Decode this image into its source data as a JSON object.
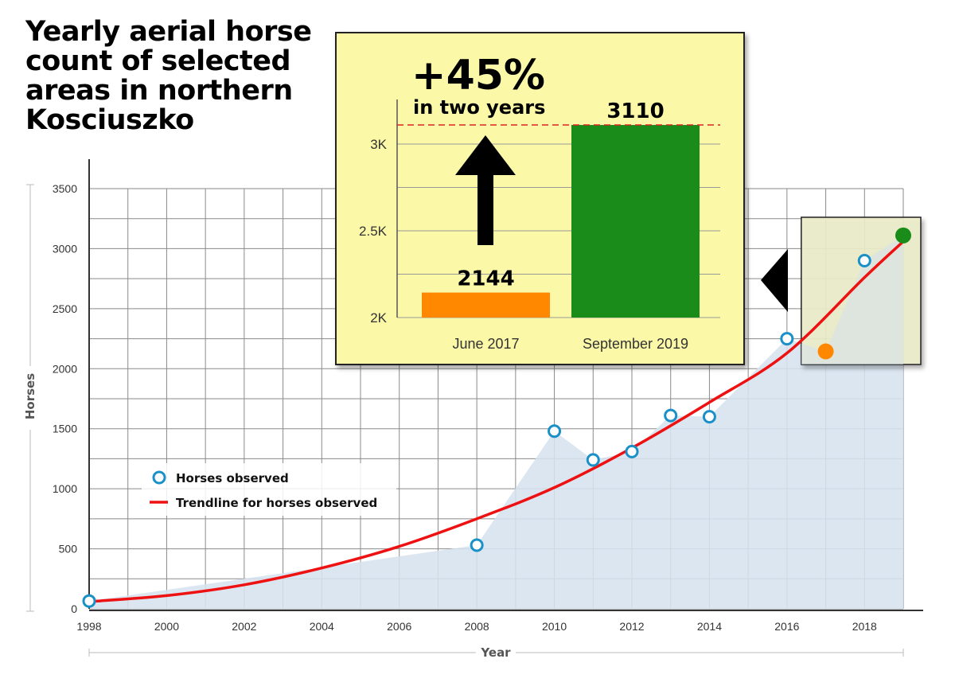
{
  "title_lines": [
    "Yearly aerial horse",
    "count of selected",
    "areas in northern",
    "Kosciuszko"
  ],
  "chart_data": [
    {
      "type": "scatter",
      "title": "Yearly aerial horse count of selected areas in northern Kosciuszko",
      "xlabel": "Year",
      "ylabel": "Horses",
      "xlim": [
        1998,
        2019
      ],
      "ylim": [
        0,
        3500
      ],
      "x_ticks": [
        1998,
        2000,
        2002,
        2004,
        2006,
        2008,
        2010,
        2012,
        2014,
        2016,
        2018
      ],
      "y_ticks": [
        0,
        500,
        1000,
        1500,
        2000,
        2500,
        3000,
        3500
      ],
      "grid": true,
      "legend_position": "center-left",
      "series": [
        {
          "name": "Horses observed",
          "type": "scatter",
          "x": [
            1998,
            2008,
            2010,
            2011,
            2012,
            2013,
            2014,
            2016,
            2018
          ],
          "y": [
            65,
            530,
            1480,
            1240,
            1310,
            1610,
            1600,
            2250,
            2900
          ]
        },
        {
          "name": "Trendline for horses observed",
          "type": "line",
          "x": [
            1998,
            2000,
            2002,
            2004,
            2006,
            2008,
            2010,
            2012,
            2014,
            2016,
            2018,
            2019
          ],
          "y": [
            60,
            110,
            200,
            340,
            520,
            750,
            1010,
            1340,
            1720,
            2130,
            2760,
            3060
          ]
        },
        {
          "type": "area",
          "x": [
            1998,
            2008,
            2010,
            2011,
            2012,
            2013,
            2014,
            2016,
            2017,
            2018,
            2019
          ],
          "y": [
            65,
            530,
            1480,
            1240,
            1310,
            1610,
            1600,
            2250,
            2144,
            2900,
            3110
          ]
        }
      ],
      "highlight_points": [
        {
          "x": 2017,
          "y": 2144,
          "color": "#ff8800"
        },
        {
          "x": 2019,
          "y": 3110,
          "color": "#1a8c1a"
        }
      ]
    },
    {
      "type": "bar",
      "headline": "+45%",
      "subheadline": "in two years",
      "categories": [
        "June 2017",
        "September 2019"
      ],
      "values": [
        2144,
        3110
      ],
      "value_labels": [
        "2144",
        "3110"
      ],
      "colors": [
        "#ff8800",
        "#1a8c1a"
      ],
      "ylim": [
        2000,
        3250
      ],
      "y_ticks": [
        2000,
        2500,
        3000
      ],
      "y_tick_labels": [
        "2K",
        "2.5K",
        "3K"
      ],
      "grid": true
    }
  ],
  "colors": {
    "area": "#d6e2ef",
    "trend": "#ee1111",
    "point": "#1a90c8",
    "inset_bg": "#fbf8a8",
    "highlight_box": "#ecedc9",
    "grid": "#8a8a8a"
  }
}
